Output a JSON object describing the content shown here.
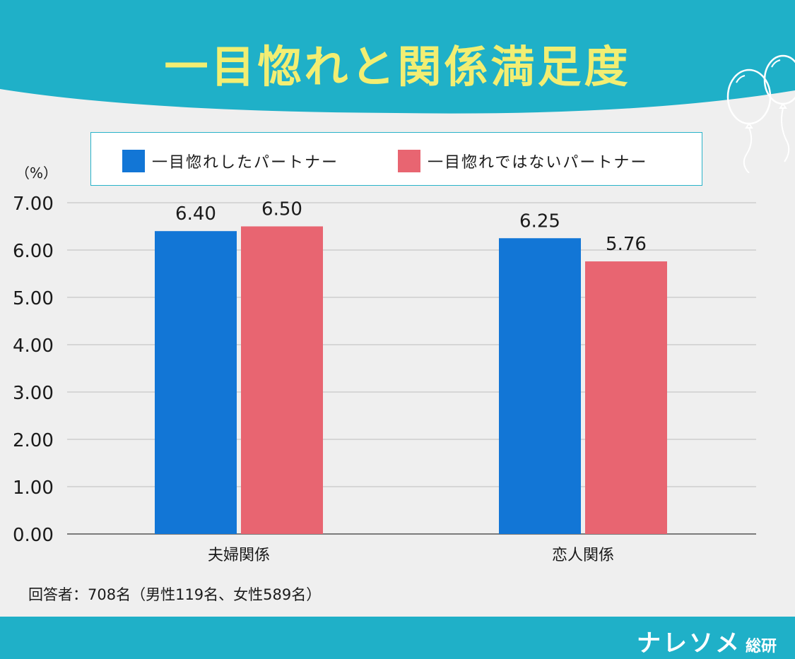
{
  "title": "一目惚れと関係満足度",
  "legend": {
    "items": [
      {
        "label": "一目惚れしたパートナー",
        "color": "#1276d6"
      },
      {
        "label": "一目惚れではないパートナー",
        "color": "#e86571"
      }
    ]
  },
  "footnote": "回答者：708名（男性119名、女性589名）",
  "brand": {
    "main": "ナレソメ",
    "sub": "総研"
  },
  "colors": {
    "banner": "#1fb0c8",
    "title": "#f2ee72",
    "background": "#efefef",
    "gridline": "#c8c8c8",
    "axis": "#555555"
  },
  "chart_data": {
    "type": "bar",
    "ylabel": "（%）",
    "ylim": [
      0,
      7
    ],
    "yticks": [
      "0.00",
      "1.00",
      "2.00",
      "3.00",
      "4.00",
      "5.00",
      "6.00",
      "7.00"
    ],
    "categories": [
      "夫婦関係",
      "恋人関係"
    ],
    "series": [
      {
        "name": "一目惚れしたパートナー",
        "values": [
          6.4,
          6.25
        ],
        "labels": [
          "6.40",
          "6.25"
        ]
      },
      {
        "name": "一目惚れではないパートナー",
        "values": [
          6.5,
          5.76
        ],
        "labels": [
          "6.50",
          "5.76"
        ]
      }
    ],
    "grid": true,
    "legend_position": "top"
  }
}
